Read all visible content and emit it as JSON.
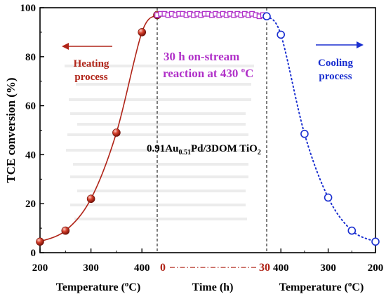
{
  "chart_data": [
    {
      "panel": "heating",
      "type": "line",
      "x": [
        200,
        250,
        300,
        350,
        400,
        430
      ],
      "y": [
        4.5,
        9,
        22,
        49,
        90,
        97
      ],
      "xlim": [
        200,
        430
      ],
      "ylim": [
        0,
        100
      ],
      "xticks": [
        "200",
        "300",
        "400"
      ],
      "yticks": [
        "0",
        "20",
        "40",
        "60",
        "80",
        "100"
      ],
      "xlabel": "Temperature (°C)",
      "ylabel": "TCE conversion (%)",
      "color": "#b02418",
      "marker": "filled-circle",
      "annotation": "Heating process",
      "arrow_direction": "left"
    },
    {
      "panel": "time",
      "type": "line",
      "x": [
        0,
        1,
        2,
        3,
        4,
        5,
        6,
        7,
        8,
        9,
        10,
        11,
        12,
        13,
        14,
        15,
        16,
        17,
        18,
        19,
        20,
        21,
        22,
        23,
        24,
        25,
        26,
        27,
        28,
        29,
        30
      ],
      "y": [
        97,
        97.5,
        97.5,
        97,
        97.5,
        97,
        97.5,
        97.5,
        97,
        97.5,
        97,
        97.5,
        97,
        97.5,
        97.5,
        97,
        97.5,
        97,
        97.5,
        97,
        97.5,
        97,
        97.5,
        97,
        97.5,
        97,
        97.5,
        97,
        96.5,
        97,
        96.5
      ],
      "xlim": [
        0,
        30
      ],
      "xticks": [
        "0",
        "30"
      ],
      "xlabel": "Time (h)",
      "color": "#b030c8",
      "marker": "open-square",
      "annotation_line1": "30 h on-stream",
      "annotation_line2": "reaction at 430 °C",
      "catalyst_label": "0.91Au0.51Pd/3DOM TiO2"
    },
    {
      "panel": "cooling",
      "type": "line",
      "x": [
        430,
        400,
        350,
        300,
        250,
        200
      ],
      "y": [
        96.5,
        89,
        48.5,
        22.5,
        9,
        4.5
      ],
      "xlim": [
        430,
        200
      ],
      "xticks": [
        "400",
        "300",
        "200"
      ],
      "xlabel": "Temperature (°C)",
      "color": "#1a2fd0",
      "marker": "open-circle",
      "annotation": "Cooling process",
      "arrow_direction": "right"
    }
  ]
}
